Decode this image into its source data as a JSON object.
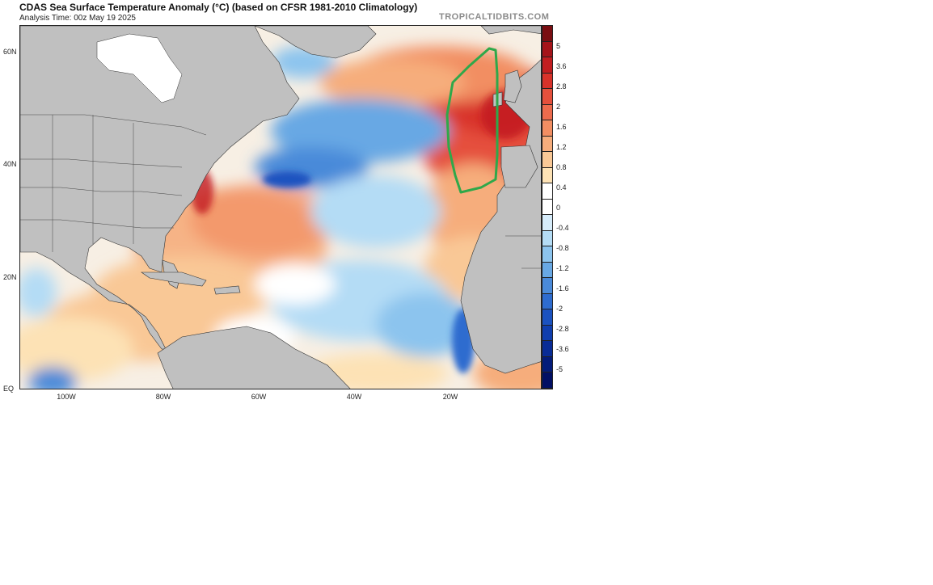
{
  "header": {
    "title": "CDAS Sea Surface Temperature Anomaly (°C) (based on CFSR 1981-2010 Climatology)",
    "analysis_time": "Analysis Time: 00z May 19 2025",
    "brand": "TROPICALTIDBITS.COM"
  },
  "axes": {
    "lat_labels": [
      "60N",
      "40N",
      "20N",
      "EQ"
    ],
    "lon_labels": [
      "100W",
      "80W",
      "60W",
      "40W",
      "20W"
    ]
  },
  "colorbar": {
    "labels": [
      "5",
      "3.6",
      "2.8",
      "2",
      "1.6",
      "1.2",
      "0.8",
      "0.4",
      "0",
      "-0.4",
      "-0.8",
      "-1.2",
      "-1.6",
      "-2",
      "-2.8",
      "-3.6",
      "-5"
    ],
    "colors": [
      "#7a0e12",
      "#a5141a",
      "#c21d20",
      "#d8322a",
      "#e5503c",
      "#ed6b4d",
      "#f28e62",
      "#f6ad7c",
      "#f9c896",
      "#fde2b5",
      "#ffffff",
      "#ffffff",
      "#d6ecfa",
      "#b4dcf5",
      "#8cc4ee",
      "#68a8e4",
      "#4a8ad9",
      "#2e6ccf",
      "#1b52c0",
      "#103eae",
      "#092c96",
      "#041c7a",
      "#021064"
    ]
  },
  "colors": {
    "land": "#c0c0c0",
    "highlight_outline": "#2fa84a"
  }
}
